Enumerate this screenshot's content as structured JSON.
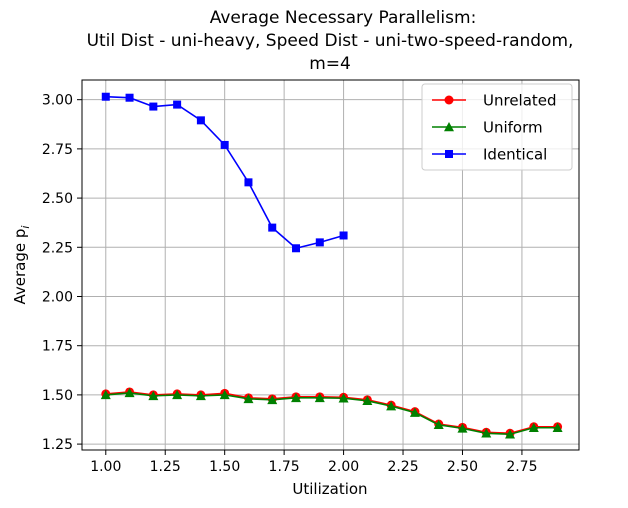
{
  "chart_data": {
    "type": "line",
    "title_lines": [
      "Average Necessary Parallelism:",
      "Util Dist - uni-heavy, Speed Dist - uni-two-speed-random,",
      "m=4"
    ],
    "xlabel": "Utilization",
    "ylabel": "Average p",
    "ylabel_subscript": "i",
    "xlim": [
      0.9,
      2.99
    ],
    "ylim": [
      1.22,
      3.1
    ],
    "xticks": [
      1.0,
      1.25,
      1.5,
      1.75,
      2.0,
      2.25,
      2.5,
      2.75
    ],
    "xtick_labels": [
      "1.00",
      "1.25",
      "1.50",
      "1.75",
      "2.00",
      "2.25",
      "2.50",
      "2.75"
    ],
    "yticks": [
      1.25,
      1.5,
      1.75,
      2.0,
      2.25,
      2.5,
      2.75,
      3.0
    ],
    "ytick_labels": [
      "1.25",
      "1.50",
      "1.75",
      "2.00",
      "2.25",
      "2.50",
      "2.75",
      "3.00"
    ],
    "grid": true,
    "legend_position": "top-right",
    "series": [
      {
        "name": "Unrelated",
        "color": "#ff0000",
        "marker": "circle",
        "x": [
          1.0,
          1.1,
          1.2,
          1.3,
          1.4,
          1.5,
          1.6,
          1.7,
          1.8,
          1.9,
          2.0,
          2.1,
          2.2,
          2.3,
          2.4,
          2.5,
          2.6,
          2.7,
          2.8,
          2.9
        ],
        "values": [
          1.505,
          1.515,
          1.5,
          1.505,
          1.5,
          1.508,
          1.485,
          1.48,
          1.49,
          1.49,
          1.488,
          1.475,
          1.448,
          1.415,
          1.352,
          1.335,
          1.31,
          1.305,
          1.338,
          1.338
        ]
      },
      {
        "name": "Uniform",
        "color": "#008000",
        "marker": "triangle",
        "x": [
          1.0,
          1.1,
          1.2,
          1.3,
          1.4,
          1.5,
          1.6,
          1.7,
          1.8,
          1.9,
          2.0,
          2.1,
          2.2,
          2.3,
          2.4,
          2.5,
          2.6,
          2.7,
          2.8,
          2.9
        ],
        "values": [
          1.5,
          1.51,
          1.495,
          1.5,
          1.495,
          1.5,
          1.48,
          1.475,
          1.485,
          1.485,
          1.483,
          1.47,
          1.443,
          1.41,
          1.348,
          1.33,
          1.305,
          1.3,
          1.333,
          1.333
        ]
      },
      {
        "name": "Identical",
        "color": "#0000ff",
        "marker": "square",
        "x": [
          1.0,
          1.1,
          1.2,
          1.3,
          1.4,
          1.5,
          1.6,
          1.7,
          1.8,
          1.9,
          2.0
        ],
        "values": [
          3.015,
          3.01,
          2.965,
          2.975,
          2.895,
          2.77,
          2.58,
          2.35,
          2.245,
          2.275,
          2.31
        ]
      }
    ]
  }
}
